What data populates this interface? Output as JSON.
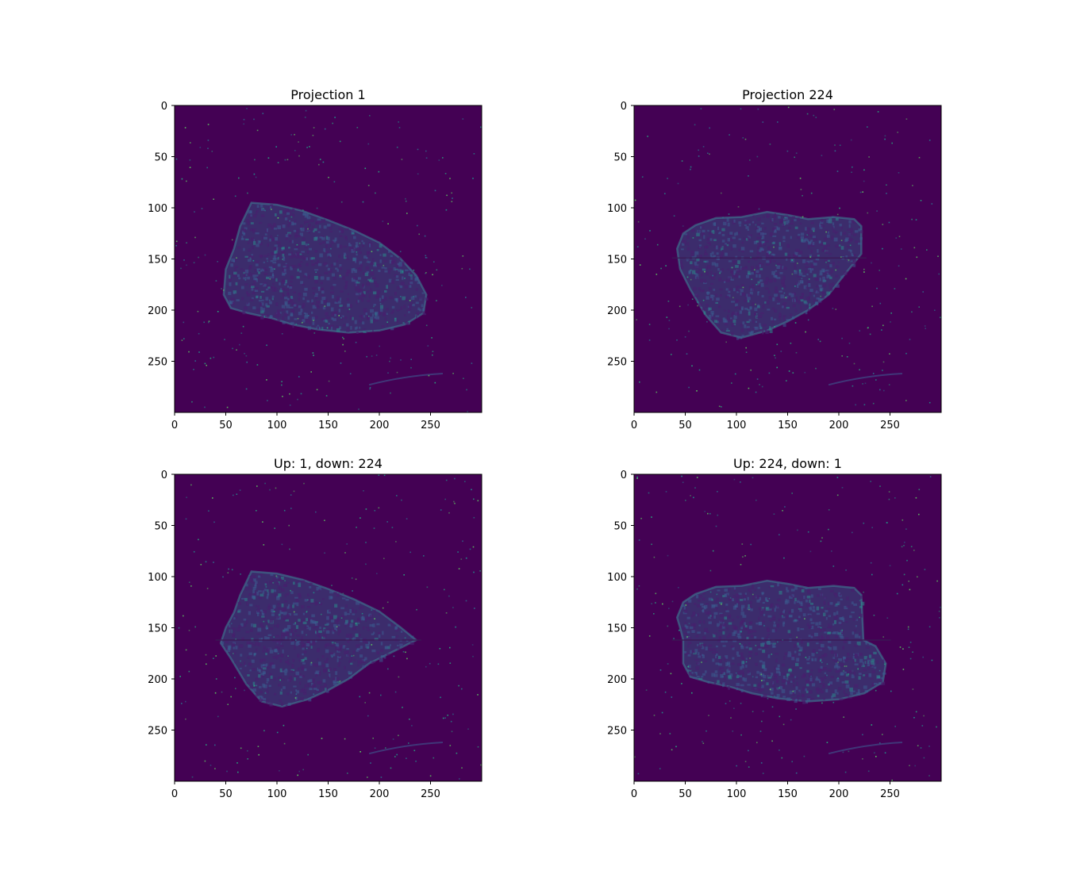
{
  "figure": {
    "background": "#ffffff",
    "colormap": "viridis"
  },
  "chart_data": [
    {
      "type": "heatmap",
      "title": "Projection 1",
      "xlim": [
        0,
        300
      ],
      "ylim": [
        300,
        0
      ],
      "xticks": [
        0,
        50,
        100,
        150,
        200,
        250
      ],
      "yticks": [
        0,
        50,
        100,
        150,
        200,
        250
      ],
      "xlabel": "",
      "ylabel": "",
      "background_color": "#440154",
      "object_color": "#31688e",
      "outline": [
        [
          75,
          95
        ],
        [
          100,
          97
        ],
        [
          125,
          103
        ],
        [
          150,
          112
        ],
        [
          175,
          122
        ],
        [
          200,
          134
        ],
        [
          220,
          149
        ],
        [
          236,
          166
        ],
        [
          246,
          185
        ],
        [
          243,
          203
        ],
        [
          225,
          214
        ],
        [
          200,
          220
        ],
        [
          170,
          222
        ],
        [
          140,
          219
        ],
        [
          115,
          214
        ],
        [
          95,
          208
        ],
        [
          72,
          203
        ],
        [
          55,
          198
        ],
        [
          48,
          185
        ],
        [
          50,
          160
        ],
        [
          58,
          140
        ],
        [
          64,
          118
        ]
      ],
      "seam_row": null
    },
    {
      "type": "heatmap",
      "title": "Projection 224",
      "xlim": [
        0,
        300
      ],
      "ylim": [
        300,
        0
      ],
      "xticks": [
        0,
        50,
        100,
        150,
        200,
        250
      ],
      "yticks": [
        0,
        50,
        100,
        150,
        200,
        250
      ],
      "xlabel": "",
      "ylabel": "",
      "background_color": "#440154",
      "object_color": "#31688e",
      "outline": [
        [
          60,
          117
        ],
        [
          80,
          110
        ],
        [
          105,
          109
        ],
        [
          130,
          104
        ],
        [
          150,
          107
        ],
        [
          170,
          111
        ],
        [
          195,
          109
        ],
        [
          215,
          111
        ],
        [
          222,
          118
        ],
        [
          222,
          145
        ],
        [
          205,
          166
        ],
        [
          190,
          185
        ],
        [
          170,
          200
        ],
        [
          150,
          211
        ],
        [
          130,
          220
        ],
        [
          105,
          227
        ],
        [
          85,
          222
        ],
        [
          70,
          205
        ],
        [
          55,
          180
        ],
        [
          45,
          160
        ],
        [
          42,
          140
        ],
        [
          48,
          125
        ]
      ],
      "seam_row": 149
    },
    {
      "type": "heatmap",
      "title": "Up: 1, down: 224",
      "xlim": [
        0,
        300
      ],
      "ylim": [
        300,
        0
      ],
      "xticks": [
        0,
        50,
        100,
        150,
        200,
        250
      ],
      "yticks": [
        0,
        50,
        100,
        150,
        200,
        250
      ],
      "xlabel": "",
      "ylabel": "",
      "background_color": "#440154",
      "object_color": "#31688e",
      "outline": [
        [
          75,
          95
        ],
        [
          100,
          97
        ],
        [
          125,
          103
        ],
        [
          150,
          112
        ],
        [
          175,
          122
        ],
        [
          200,
          134
        ],
        [
          220,
          149
        ],
        [
          236,
          162
        ],
        [
          190,
          185
        ],
        [
          170,
          200
        ],
        [
          150,
          211
        ],
        [
          130,
          220
        ],
        [
          105,
          227
        ],
        [
          85,
          222
        ],
        [
          70,
          205
        ],
        [
          55,
          180
        ],
        [
          45,
          165
        ],
        [
          50,
          150
        ],
        [
          58,
          135
        ],
        [
          64,
          118
        ]
      ],
      "seam_row": 162
    },
    {
      "type": "heatmap",
      "title": "Up: 224, down: 1",
      "xlim": [
        0,
        300
      ],
      "ylim": [
        300,
        0
      ],
      "xticks": [
        0,
        50,
        100,
        150,
        200,
        250
      ],
      "yticks": [
        0,
        50,
        100,
        150,
        200,
        250
      ],
      "xlabel": "",
      "ylabel": "",
      "background_color": "#440154",
      "object_color": "#31688e",
      "outline": [
        [
          60,
          117
        ],
        [
          80,
          110
        ],
        [
          105,
          109
        ],
        [
          130,
          104
        ],
        [
          150,
          107
        ],
        [
          170,
          111
        ],
        [
          195,
          109
        ],
        [
          215,
          111
        ],
        [
          222,
          118
        ],
        [
          224,
          162
        ],
        [
          236,
          168
        ],
        [
          246,
          185
        ],
        [
          243,
          203
        ],
        [
          225,
          214
        ],
        [
          200,
          220
        ],
        [
          170,
          222
        ],
        [
          140,
          219
        ],
        [
          115,
          214
        ],
        [
          95,
          208
        ],
        [
          72,
          203
        ],
        [
          55,
          198
        ],
        [
          48,
          185
        ],
        [
          48,
          162
        ],
        [
          45,
          150
        ],
        [
          42,
          140
        ],
        [
          48,
          125
        ]
      ],
      "seam_row": 162
    }
  ]
}
